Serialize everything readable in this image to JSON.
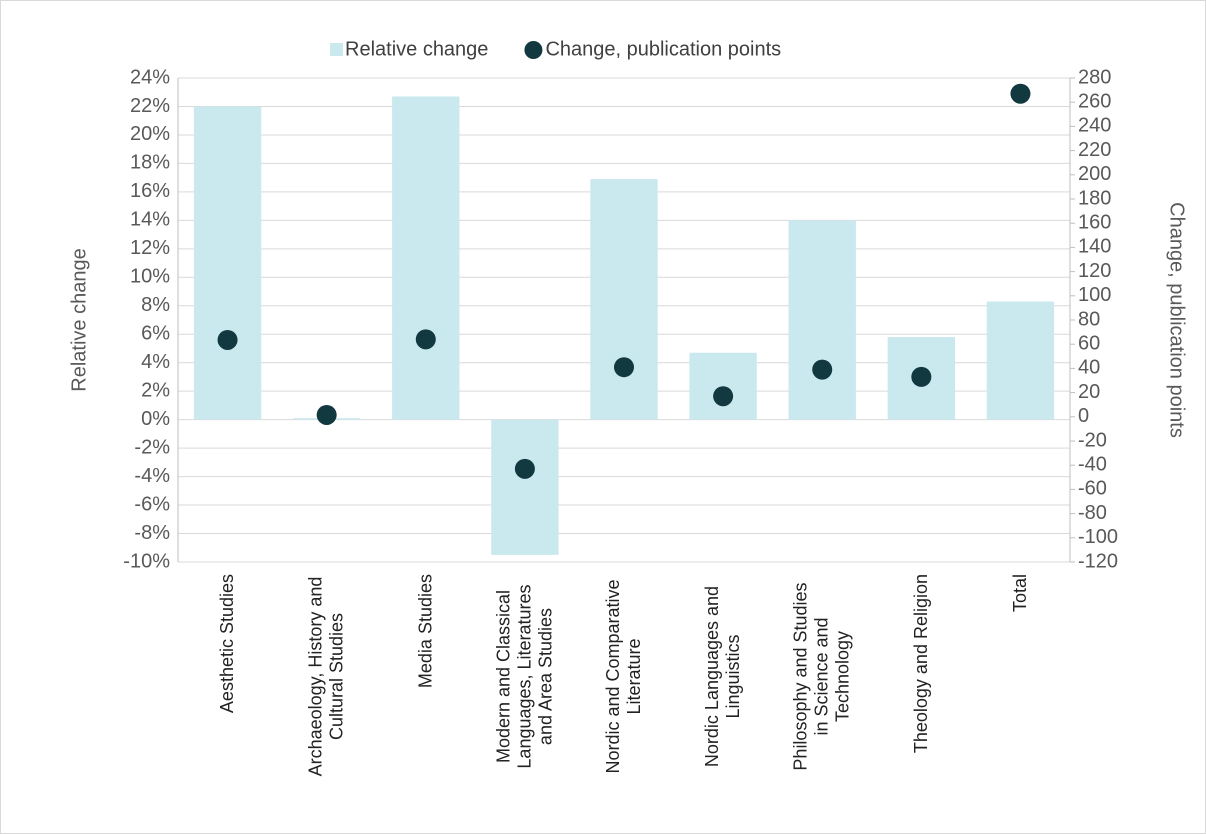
{
  "chart_data": {
    "type": "bar",
    "categories": [
      "Aesthetic Studies",
      "Archaeology, History and Cultural Studies",
      "Media Studies",
      "Modern and Classical Languages, Literatures and Area Studies",
      "Nordic and Comparative Literature",
      "Nordic Languages and Linguistics",
      "Philosophy and Studies in Science and Technology",
      "Theology and Religion",
      "Total"
    ],
    "series": [
      {
        "name": "Relative change",
        "color": "#c9e9ef",
        "values": [
          22.0,
          0.1,
          22.7,
          -9.5,
          16.9,
          4.7,
          14.0,
          5.8,
          8.3
        ]
      },
      {
        "name": "Change, publication points",
        "color": "#12393f",
        "type": "scatter",
        "axis": "y2",
        "values": [
          63.5,
          1.5,
          64,
          -43,
          41,
          17,
          39,
          33,
          267
        ]
      }
    ],
    "ylabel": "Relative change",
    "y2label": "Change, publication points",
    "ylim": [
      -10,
      24
    ],
    "yticks": [
      {
        "value": -10,
        "label": "-10%"
      },
      {
        "value": -8,
        "label": "-8%"
      },
      {
        "value": -6,
        "label": "-6%"
      },
      {
        "value": -4,
        "label": "-4%"
      },
      {
        "value": -2,
        "label": "-2%"
      },
      {
        "value": 0,
        "label": "0%"
      },
      {
        "value": 2,
        "label": "2%"
      },
      {
        "value": 4,
        "label": "4%"
      },
      {
        "value": 6,
        "label": "6%"
      },
      {
        "value": 8,
        "label": "8%"
      },
      {
        "value": 10,
        "label": "10%"
      },
      {
        "value": 12,
        "label": "12%"
      },
      {
        "value": 14,
        "label": "14%"
      },
      {
        "value": 16,
        "label": "16%"
      },
      {
        "value": 18,
        "label": "18%"
      },
      {
        "value": 20,
        "label": "20%"
      },
      {
        "value": 22,
        "label": "22%"
      },
      {
        "value": 24,
        "label": "24%"
      }
    ],
    "y2lim": [
      -120,
      280
    ],
    "y2ticks": [
      -120,
      -100,
      -80,
      -60,
      -40,
      -20,
      0,
      20,
      40,
      60,
      80,
      100,
      120,
      140,
      160,
      180,
      200,
      220,
      240,
      260,
      280
    ],
    "grid": true,
    "legend": "top"
  }
}
